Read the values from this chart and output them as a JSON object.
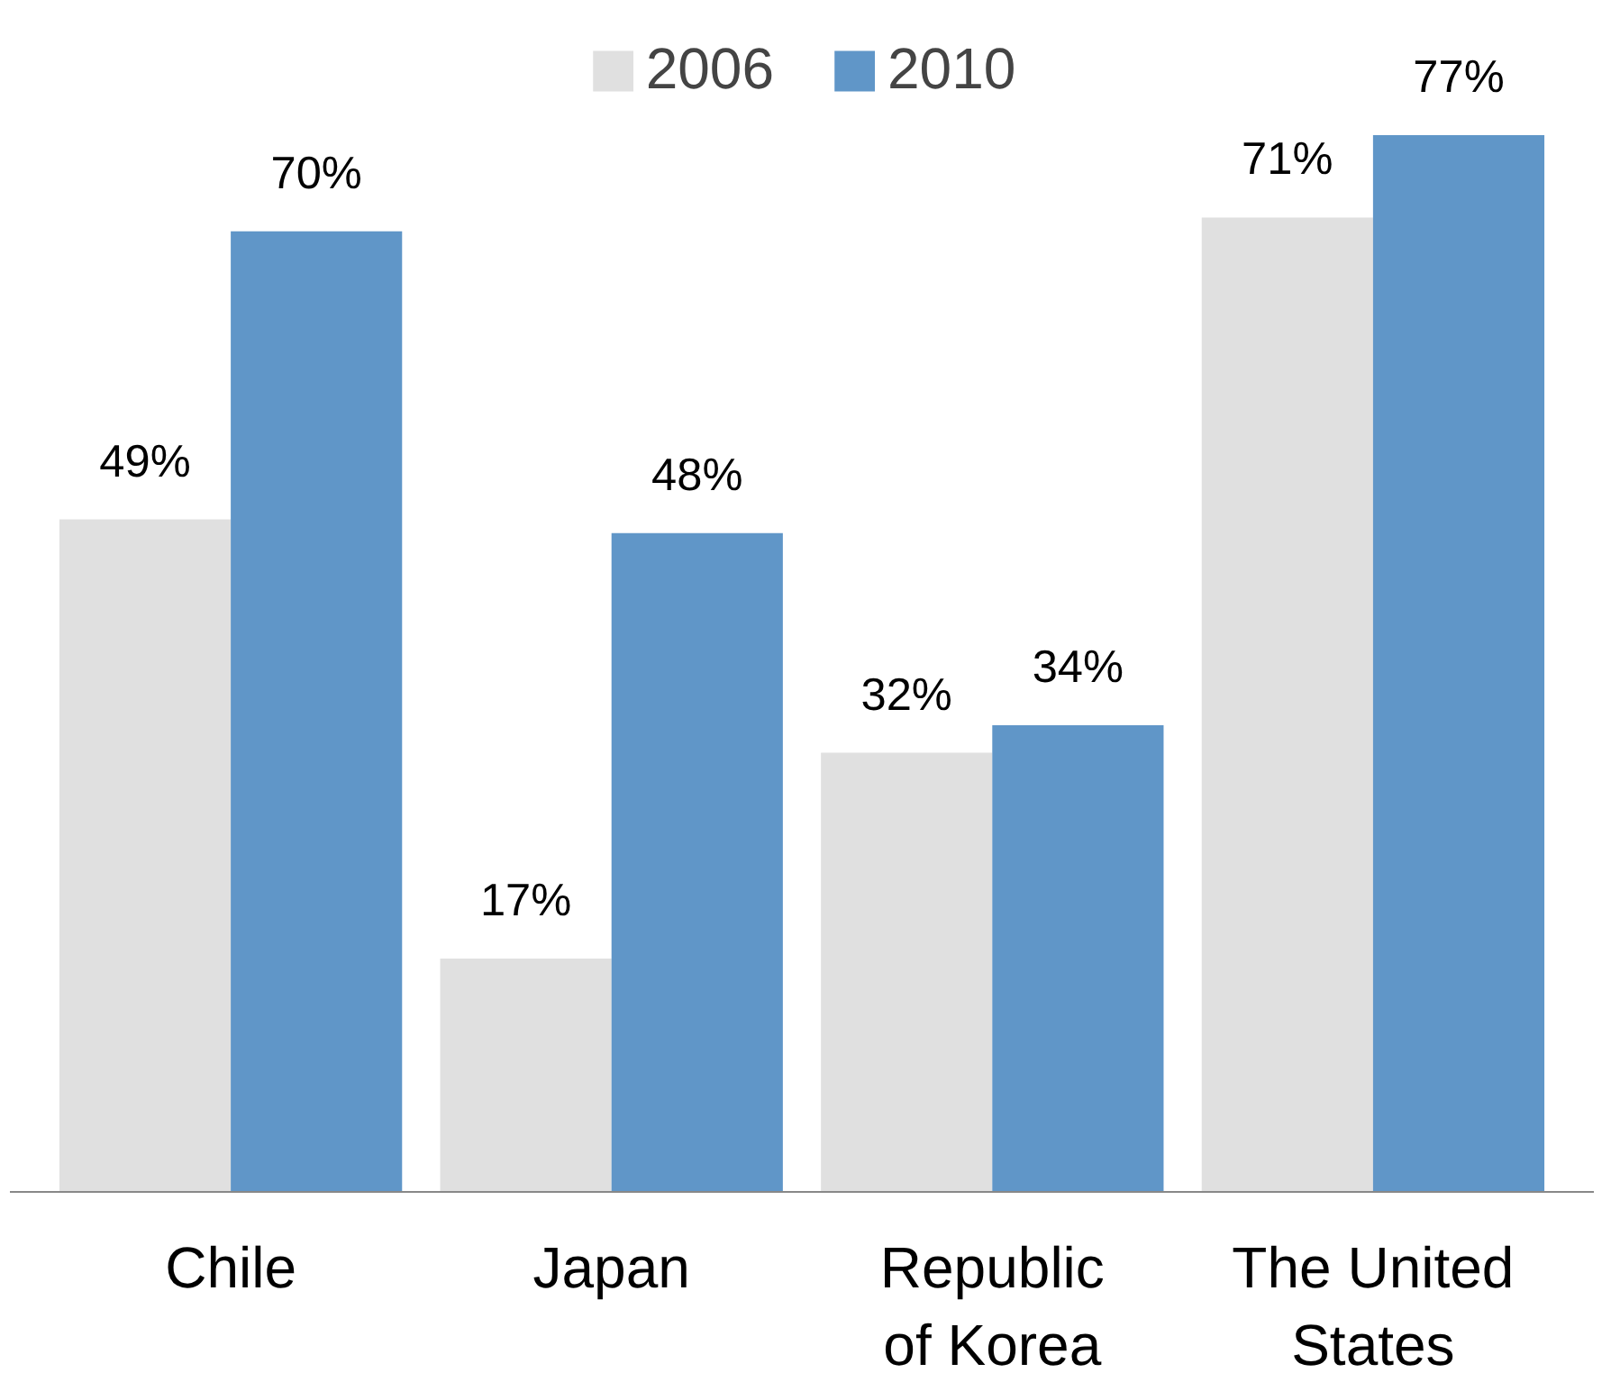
{
  "chart_data": {
    "type": "bar",
    "categories": [
      "Chile",
      "Japan",
      "Republic of Korea",
      "The United States"
    ],
    "series": [
      {
        "name": "2006",
        "color": "#e0e0e0",
        "values": [
          49,
          17,
          32,
          71
        ],
        "value_labels": [
          "49%",
          "17%",
          "32%",
          "71%"
        ]
      },
      {
        "name": "2010",
        "color": "#6096c8",
        "values": [
          70,
          48,
          34,
          77
        ],
        "value_labels": [
          "70%",
          "48%",
          "34%",
          "77%"
        ]
      }
    ],
    "legend": "top",
    "grid": false
  }
}
